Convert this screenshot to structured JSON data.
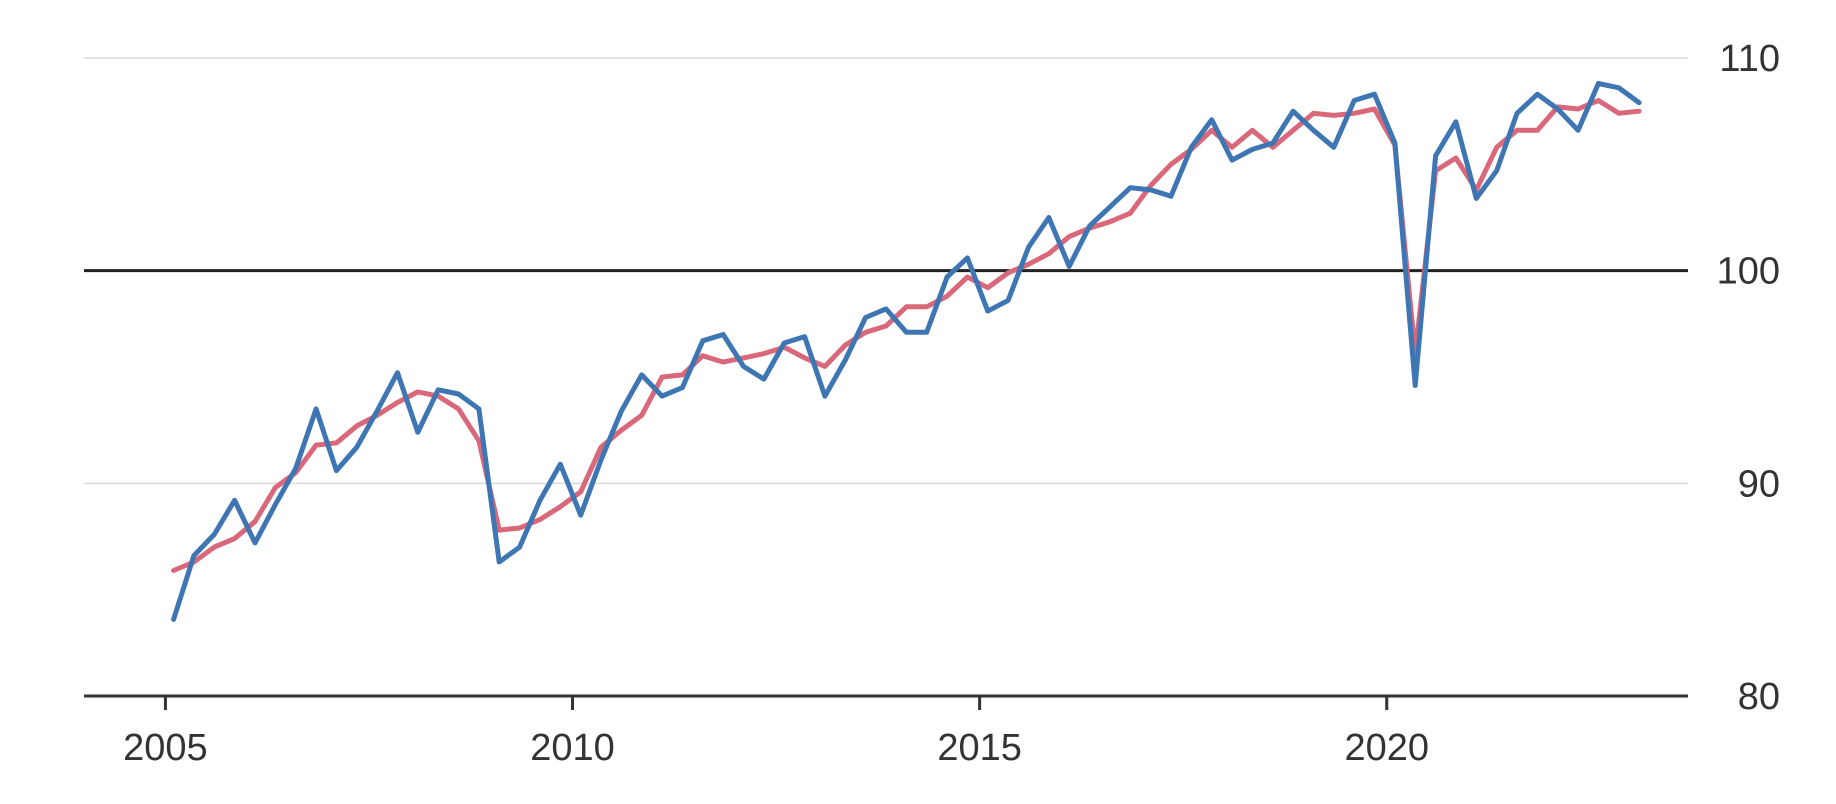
{
  "colors": {
    "series_blue": "#3e75b3",
    "series_red": "#d9687a",
    "gridline": "#d9d9d9",
    "baseline": "#222222",
    "axis": "#333333",
    "text": "#333333"
  },
  "chart_data": {
    "type": "line",
    "title": "",
    "xlabel": "",
    "ylabel": "",
    "xlim": [
      2004,
      2023.7
    ],
    "ylim": [
      80,
      110
    ],
    "x_ticks": [
      2005,
      2010,
      2015,
      2020
    ],
    "x_tick_labels": [
      "2005",
      "2010",
      "2015",
      "2020"
    ],
    "y_ticks": [
      80,
      90,
      100,
      110
    ],
    "y_tick_labels": [
      "80",
      "90",
      "100",
      "110"
    ],
    "y_axis_side": "right",
    "reference_line": 100,
    "grid": "horizontal",
    "legend": "none",
    "series": [
      {
        "color": "#d9687a",
        "x": [
          2005.1,
          2005.35,
          2005.6,
          2005.85,
          2006.1,
          2006.35,
          2006.6,
          2006.85,
          2007.1,
          2007.35,
          2007.6,
          2007.85,
          2008.1,
          2008.35,
          2008.6,
          2008.85,
          2009.1,
          2009.35,
          2009.6,
          2009.85,
          2010.1,
          2010.35,
          2010.6,
          2010.85,
          2011.1,
          2011.35,
          2011.6,
          2011.85,
          2012.1,
          2012.35,
          2012.6,
          2012.85,
          2013.1,
          2013.35,
          2013.6,
          2013.85,
          2014.1,
          2014.35,
          2014.6,
          2014.85,
          2015.1,
          2015.35,
          2015.6,
          2015.85,
          2016.1,
          2016.35,
          2016.6,
          2016.85,
          2017.1,
          2017.35,
          2017.6,
          2017.85,
          2018.1,
          2018.35,
          2018.6,
          2018.85,
          2019.1,
          2019.35,
          2019.6,
          2019.85,
          2020.1,
          2020.35,
          2020.6,
          2020.85,
          2021.1,
          2021.35,
          2021.6,
          2021.85,
          2022.1,
          2022.35,
          2022.6,
          2022.85,
          2023.1
        ],
        "y": [
          85.9,
          86.3,
          87.0,
          87.4,
          88.2,
          89.8,
          90.5,
          91.8,
          91.9,
          92.7,
          93.2,
          93.8,
          94.3,
          94.1,
          93.5,
          92.0,
          87.8,
          87.9,
          88.3,
          88.9,
          89.6,
          91.7,
          92.5,
          93.2,
          95.0,
          95.1,
          96.0,
          95.7,
          95.9,
          96.1,
          96.4,
          95.9,
          95.5,
          96.5,
          97.1,
          97.4,
          98.3,
          98.3,
          98.8,
          99.7,
          99.2,
          99.9,
          100.3,
          100.8,
          101.6,
          102.0,
          102.3,
          102.7,
          104.0,
          105.0,
          105.7,
          106.6,
          105.8,
          106.6,
          105.8,
          106.6,
          107.4,
          107.3,
          107.4,
          107.6,
          105.9,
          96.1,
          104.7,
          105.3,
          103.8,
          105.8,
          106.6,
          106.6,
          107.7,
          107.6,
          108.0,
          107.4,
          107.5
        ]
      },
      {
        "color": "#3e75b3",
        "x": [
          2005.1,
          2005.35,
          2005.6,
          2005.85,
          2006.1,
          2006.35,
          2006.6,
          2006.85,
          2007.1,
          2007.35,
          2007.6,
          2007.85,
          2008.1,
          2008.35,
          2008.6,
          2008.85,
          2009.1,
          2009.35,
          2009.6,
          2009.85,
          2010.1,
          2010.35,
          2010.6,
          2010.85,
          2011.1,
          2011.35,
          2011.6,
          2011.85,
          2012.1,
          2012.35,
          2012.6,
          2012.85,
          2013.1,
          2013.35,
          2013.6,
          2013.85,
          2014.1,
          2014.35,
          2014.6,
          2014.85,
          2015.1,
          2015.35,
          2015.6,
          2015.85,
          2016.1,
          2016.35,
          2016.6,
          2016.85,
          2017.1,
          2017.35,
          2017.6,
          2017.85,
          2018.1,
          2018.35,
          2018.6,
          2018.85,
          2019.1,
          2019.35,
          2019.6,
          2019.85,
          2020.1,
          2020.35,
          2020.6,
          2020.85,
          2021.1,
          2021.35,
          2021.6,
          2021.85,
          2022.1,
          2022.35,
          2022.6,
          2022.85,
          2023.1
        ],
        "y": [
          83.6,
          86.6,
          87.6,
          89.2,
          87.2,
          89.0,
          90.7,
          93.5,
          90.6,
          91.7,
          93.4,
          95.2,
          92.4,
          94.4,
          94.2,
          93.5,
          86.3,
          87.0,
          89.2,
          90.9,
          88.5,
          91.1,
          93.4,
          95.1,
          94.1,
          94.5,
          96.7,
          97.0,
          95.5,
          94.9,
          96.6,
          96.9,
          94.1,
          95.8,
          97.8,
          98.2,
          97.1,
          97.1,
          99.7,
          100.6,
          98.1,
          98.6,
          101.1,
          102.5,
          100.2,
          102.1,
          103.0,
          103.9,
          103.8,
          103.5,
          105.8,
          107.1,
          105.2,
          105.7,
          106.0,
          107.5,
          106.6,
          105.8,
          108.0,
          108.3,
          106.0,
          94.6,
          105.4,
          107.0,
          103.4,
          104.7,
          107.4,
          108.3,
          107.6,
          106.6,
          108.8,
          108.6,
          107.9
        ]
      }
    ]
  }
}
